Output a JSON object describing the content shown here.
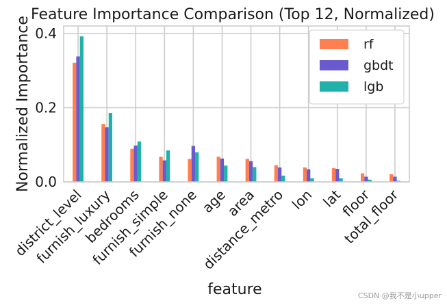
{
  "chart_data": {
    "type": "bar",
    "title": "Feature Importance Comparison (Top 12, Normalized)",
    "xlabel": "feature",
    "ylabel": "Normalized Importance",
    "ylim": [
      0,
      0.42
    ],
    "yticks": [
      0.0,
      0.2,
      0.4
    ],
    "ytick_labels": [
      "0.0",
      "0.2",
      "0.4"
    ],
    "grid": true,
    "legend_position": "top-right",
    "categories": [
      "district_level",
      "furnish_luxury",
      "bedrooms",
      "furnish_simple",
      "furnish_none",
      "age",
      "area",
      "distance_metro",
      "lon",
      "lat",
      "floor",
      "total_floor"
    ],
    "series": [
      {
        "name": "rf",
        "color": "#ff7f50",
        "values": [
          0.321,
          0.156,
          0.089,
          0.068,
          0.062,
          0.068,
          0.062,
          0.045,
          0.039,
          0.037,
          0.023,
          0.021
        ]
      },
      {
        "name": "gbdt",
        "color": "#6a5acd",
        "values": [
          0.338,
          0.147,
          0.098,
          0.058,
          0.097,
          0.063,
          0.056,
          0.039,
          0.034,
          0.035,
          0.014,
          0.014
        ]
      },
      {
        "name": "lgb",
        "color": "#20b2aa",
        "values": [
          0.392,
          0.186,
          0.109,
          0.085,
          0.08,
          0.044,
          0.04,
          0.017,
          0.01,
          0.01,
          0.006,
          0.003
        ]
      }
    ]
  },
  "watermark": "CSDN @我不是小upper"
}
